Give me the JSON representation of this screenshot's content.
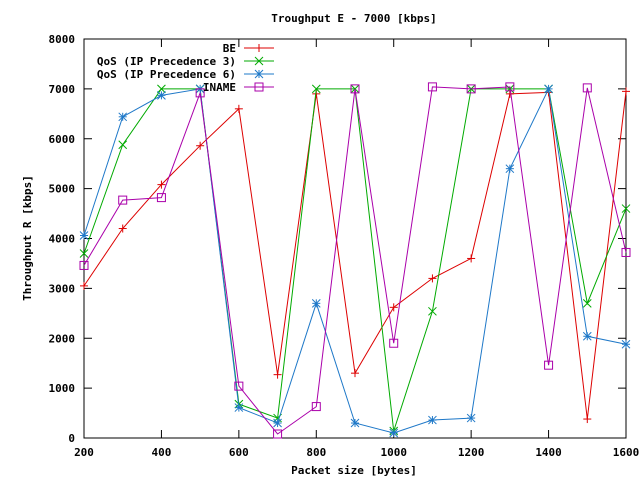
{
  "chart_data": {
    "type": "line",
    "title": "Troughput E - 7000 [kbps]",
    "xlabel": "Packet size [bytes]",
    "ylabel": "Throughput R [kbps]",
    "xlim": [
      200,
      1600
    ],
    "ylim": [
      0,
      8000
    ],
    "x_ticks": [
      200,
      400,
      600,
      800,
      1000,
      1200,
      1400,
      1600
    ],
    "y_ticks": [
      0,
      1000,
      2000,
      3000,
      4000,
      5000,
      6000,
      7000,
      8000
    ],
    "x_tick_labels": [
      "200",
      "400",
      "600",
      "800",
      "1000",
      "1200",
      "1400",
      "1600"
    ],
    "y_tick_labels": [
      "0",
      "1000",
      "2000",
      "3000",
      "4000",
      "5000",
      "6000",
      "7000",
      "8000"
    ],
    "grid": false,
    "legend_position": "top-left",
    "x": [
      200,
      300,
      400,
      500,
      600,
      700,
      800,
      900,
      1000,
      1100,
      1200,
      1300,
      1400,
      1500,
      1600
    ],
    "series": [
      {
        "name": "BE",
        "color": "#dd0000",
        "marker": "plus",
        "values": [
          3050,
          4200,
          5080,
          5860,
          6600,
          1270,
          6900,
          1300,
          2620,
          3200,
          3600,
          6900,
          6930,
          380,
          6950
        ]
      },
      {
        "name": "QoS (IP Precedence 3)",
        "color": "#00aa00",
        "marker": "cross",
        "values": [
          3700,
          5880,
          7000,
          7000,
          680,
          400,
          7000,
          7000,
          140,
          2540,
          7000,
          7000,
          7000,
          2700,
          4600
        ]
      },
      {
        "name": "QoS (IP Precedence 6)",
        "color": "#1e78c8",
        "marker": "star",
        "values": [
          4060,
          6440,
          6870,
          7000,
          610,
          300,
          2700,
          300,
          100,
          360,
          400,
          5400,
          7000,
          2040,
          1880
        ]
      },
      {
        "name": "INAME",
        "color": "#aa00aa",
        "marker": "square",
        "values": [
          3460,
          4770,
          4820,
          6920,
          1040,
          80,
          630,
          7000,
          1900,
          7040,
          7000,
          7040,
          1460,
          7020,
          3720
        ]
      }
    ]
  }
}
